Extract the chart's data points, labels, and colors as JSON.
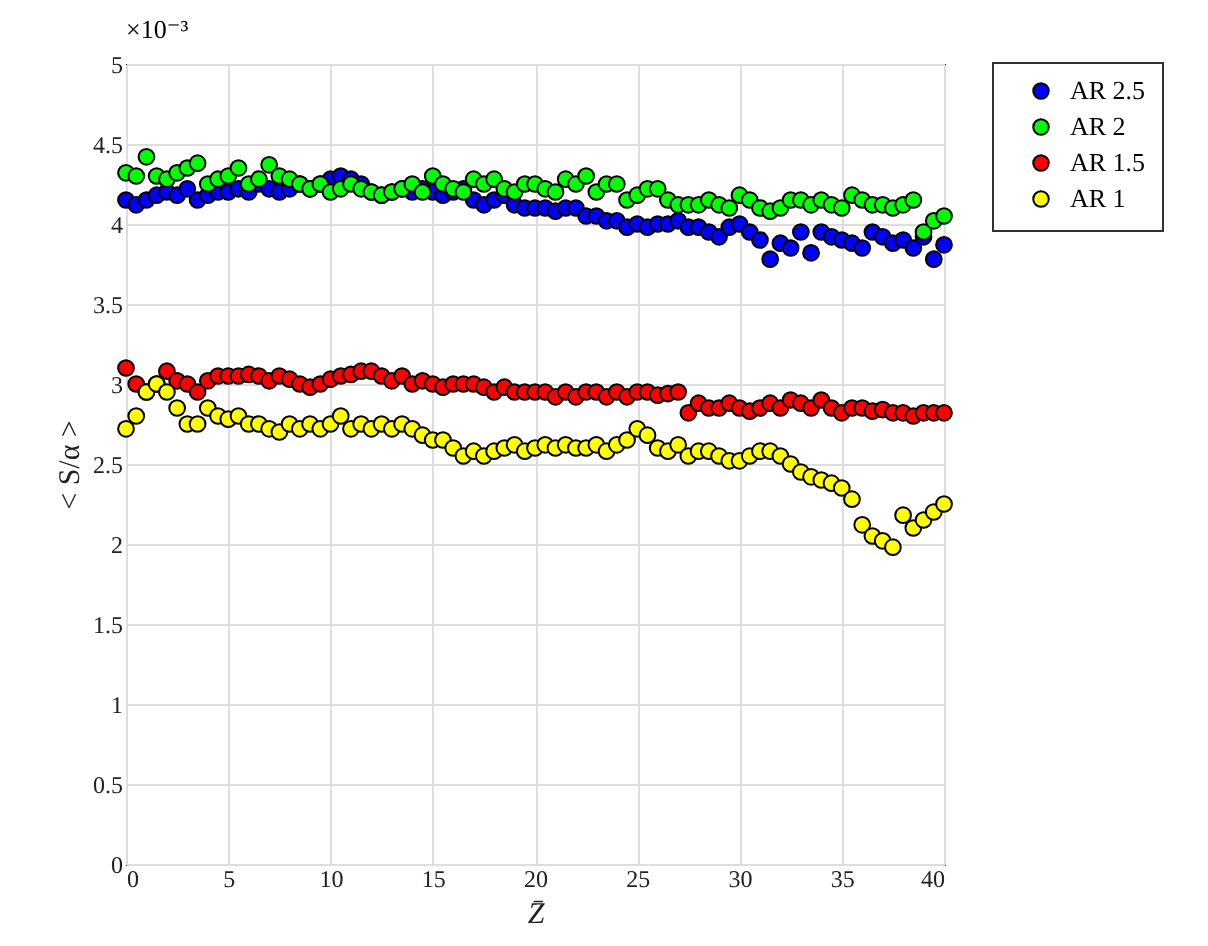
{
  "chart_data": {
    "type": "scatter",
    "xlabel": "Z̄",
    "ylabel": "< S/α >",
    "annotations": [
      "×10⁻³"
    ],
    "x": [
      0,
      0.5,
      1,
      1.5,
      2,
      2.5,
      3,
      3.5,
      4,
      4.5,
      5,
      5.5,
      6,
      6.5,
      7,
      7.5,
      8,
      8.5,
      9,
      9.5,
      10,
      10.5,
      11,
      11.5,
      12,
      12.5,
      13,
      13.5,
      14,
      14.5,
      15,
      15.5,
      16,
      16.5,
      17,
      17.5,
      18,
      18.5,
      19,
      19.5,
      20,
      20.5,
      21,
      21.5,
      22,
      22.5,
      23,
      23.5,
      24,
      24.5,
      25,
      25.5,
      26,
      26.5,
      27,
      27.5,
      28,
      28.5,
      29,
      29.5,
      30,
      30.5,
      31,
      31.5,
      32,
      32.5,
      33,
      33.5,
      34,
      34.5,
      35,
      35.5,
      36,
      36.5,
      37,
      37.5,
      38,
      38.5,
      39,
      39.5,
      40
    ],
    "series": [
      {
        "name": "AR 2.5",
        "color": "#0000ff",
        "values": [
          4.15,
          4.12,
          4.15,
          4.18,
          4.2,
          4.18,
          4.22,
          4.15,
          4.18,
          4.2,
          4.2,
          4.22,
          4.2,
          4.25,
          4.22,
          4.2,
          4.22,
          4.25,
          4.22,
          4.25,
          4.28,
          4.3,
          4.28,
          4.25,
          4.2,
          4.18,
          4.2,
          4.22,
          4.2,
          4.22,
          4.2,
          4.18,
          4.2,
          4.22,
          4.15,
          4.12,
          4.15,
          4.18,
          4.12,
          4.1,
          4.1,
          4.1,
          4.08,
          4.1,
          4.1,
          4.05,
          4.05,
          4.02,
          4.02,
          3.98,
          4.0,
          3.98,
          4.0,
          4.0,
          4.02,
          3.98,
          3.98,
          3.95,
          3.92,
          3.98,
          4.0,
          3.95,
          3.9,
          3.78,
          3.88,
          3.85,
          3.95,
          3.82,
          3.95,
          3.92,
          3.9,
          3.88,
          3.85,
          3.95,
          3.92,
          3.88,
          3.9,
          3.85,
          3.92,
          3.78,
          3.87
        ]
      },
      {
        "name": "AR 2",
        "color": "#00ff00",
        "values": [
          4.32,
          4.3,
          4.42,
          4.3,
          4.28,
          4.32,
          4.35,
          4.38,
          4.25,
          4.28,
          4.3,
          4.35,
          4.25,
          4.28,
          4.37,
          4.3,
          4.28,
          4.25,
          4.22,
          4.25,
          4.2,
          4.22,
          4.25,
          4.22,
          4.2,
          4.18,
          4.2,
          4.22,
          4.25,
          4.2,
          4.3,
          4.25,
          4.22,
          4.2,
          4.28,
          4.25,
          4.28,
          4.22,
          4.2,
          4.25,
          4.25,
          4.22,
          4.2,
          4.28,
          4.25,
          4.3,
          4.2,
          4.25,
          4.25,
          4.15,
          4.18,
          4.22,
          4.22,
          4.15,
          4.12,
          4.12,
          4.12,
          4.15,
          4.12,
          4.1,
          4.18,
          4.15,
          4.1,
          4.08,
          4.1,
          4.15,
          4.15,
          4.12,
          4.15,
          4.12,
          4.1,
          4.18,
          4.15,
          4.12,
          4.12,
          4.1,
          4.12,
          4.15,
          3.95,
          4.02,
          4.05
        ]
      },
      {
        "name": "AR 1.5",
        "color": "#ff0000",
        "values": [
          3.1,
          3.0,
          2.95,
          3.0,
          3.08,
          3.02,
          3.0,
          2.95,
          3.02,
          3.05,
          3.05,
          3.05,
          3.06,
          3.05,
          3.02,
          3.05,
          3.03,
          3.0,
          2.98,
          3.0,
          3.03,
          3.05,
          3.06,
          3.08,
          3.08,
          3.05,
          3.02,
          3.05,
          3.0,
          3.02,
          3.0,
          2.98,
          3.0,
          3.0,
          3.0,
          2.98,
          2.95,
          2.98,
          2.95,
          2.95,
          2.95,
          2.95,
          2.92,
          2.95,
          2.92,
          2.95,
          2.95,
          2.92,
          2.95,
          2.92,
          2.95,
          2.95,
          2.93,
          2.94,
          2.95,
          2.82,
          2.88,
          2.85,
          2.85,
          2.88,
          2.85,
          2.83,
          2.85,
          2.88,
          2.85,
          2.9,
          2.88,
          2.85,
          2.9,
          2.85,
          2.82,
          2.85,
          2.85,
          2.83,
          2.84,
          2.82,
          2.82,
          2.8,
          2.82,
          2.82,
          2.82
        ]
      },
      {
        "name": "AR 1",
        "color": "#ffff00",
        "values": [
          2.72,
          2.8,
          2.95,
          3.0,
          2.95,
          2.85,
          2.75,
          2.75,
          2.85,
          2.8,
          2.78,
          2.8,
          2.75,
          2.75,
          2.72,
          2.7,
          2.75,
          2.72,
          2.75,
          2.72,
          2.75,
          2.8,
          2.72,
          2.75,
          2.72,
          2.75,
          2.72,
          2.75,
          2.72,
          2.68,
          2.65,
          2.65,
          2.6,
          2.55,
          2.58,
          2.55,
          2.58,
          2.6,
          2.62,
          2.58,
          2.6,
          2.62,
          2.6,
          2.62,
          2.6,
          2.6,
          2.62,
          2.58,
          2.62,
          2.65,
          2.72,
          2.68,
          2.6,
          2.58,
          2.62,
          2.55,
          2.58,
          2.58,
          2.55,
          2.52,
          2.52,
          2.55,
          2.58,
          2.58,
          2.55,
          2.5,
          2.45,
          2.42,
          2.4,
          2.38,
          2.35,
          2.28,
          2.12,
          2.05,
          2.02,
          1.98,
          2.18,
          2.1,
          2.15,
          2.2,
          2.25
        ]
      }
    ],
    "xlim": [
      0,
      40
    ],
    "xticks": [
      0,
      5,
      10,
      15,
      20,
      25,
      30,
      35,
      40
    ],
    "ylim": [
      0,
      5
    ],
    "yticks": [
      0,
      0.5,
      1,
      1.5,
      2,
      2.5,
      3,
      3.5,
      4,
      4.5,
      5
    ],
    "grid": true,
    "legend": "top right",
    "marker": "circle"
  }
}
